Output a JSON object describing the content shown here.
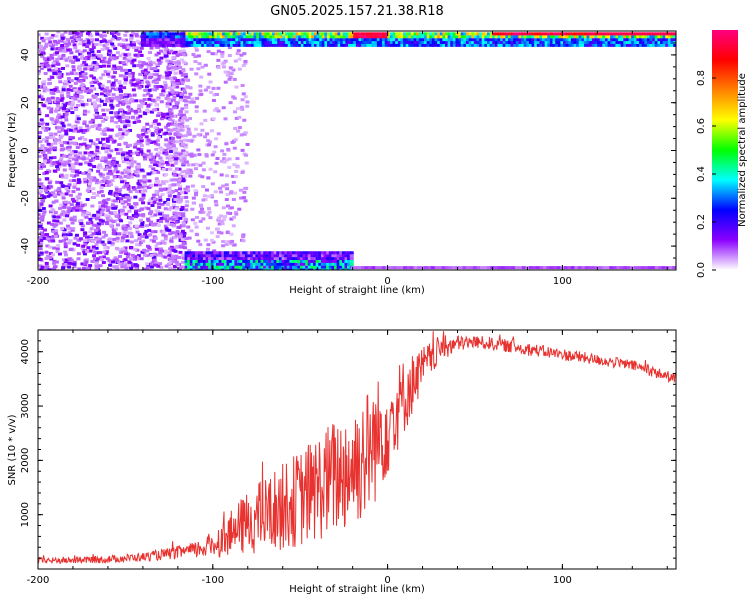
{
  "figure": {
    "title": "GN05.2025.157.21.38.R18"
  },
  "chart_data": [
    {
      "type": "heatmap",
      "title": "GN05.2025.157.21.38.R18",
      "xlabel": "Height of straight line (km)",
      "ylabel": "Frequency (Hz)",
      "xlim": [
        -200,
        165
      ],
      "ylim": [
        -50,
        50
      ],
      "x_ticks": [
        -200,
        -100,
        0,
        100
      ],
      "x_tick_labels": [
        "-200",
        "-100",
        "0",
        "100"
      ],
      "y_ticks": [
        40,
        20,
        0,
        -20,
        -40
      ],
      "y_tick_labels": [
        "40",
        "20",
        "0",
        "-20",
        "-40"
      ],
      "colorbar": {
        "label": "Normalized spectral amplitude",
        "range": [
          0,
          1
        ],
        "ticks": [
          0.0,
          0.2,
          0.4,
          0.6,
          0.8
        ],
        "tick_labels": [
          "0.0",
          "0.2",
          "0.4",
          "0.6",
          "0.8"
        ],
        "colors": [
          "#ffffff",
          "#8b00ff",
          "#0000ff",
          "#00ffff",
          "#00ff00",
          "#ffff00",
          "#ff8000",
          "#ff0000",
          "#ff0080"
        ]
      },
      "features": [
        {
          "description": "scattered noise",
          "x_range": [
            -200,
            -115
          ],
          "y_range": [
            -50,
            50
          ],
          "level": 0.15
        },
        {
          "description": "upper band",
          "x_range": [
            -140,
            165
          ],
          "y_range": [
            44,
            50
          ],
          "level": 0.6
        },
        {
          "description": "lower band",
          "x_range": [
            -115,
            -20
          ],
          "y_range": [
            -50,
            -42
          ],
          "level": 0.4
        }
      ]
    },
    {
      "type": "line",
      "xlabel": "Height of straight line (km)",
      "ylabel": "SNR (10 * v/v)",
      "xlim": [
        -200,
        165
      ],
      "ylim": [
        0,
        4400
      ],
      "x_ticks": [
        -200,
        -100,
        0,
        100
      ],
      "x_tick_labels": [
        "-200",
        "-100",
        "0",
        "100"
      ],
      "y_ticks": [
        1000,
        2000,
        3000,
        4000
      ],
      "y_tick_labels": [
        "1000",
        "2000",
        "3000",
        "4000"
      ],
      "color": "#e8322f",
      "series": [
        {
          "x": [
            -200,
            -180,
            -160,
            -140,
            -120,
            -110,
            -100,
            -90,
            -80,
            -70,
            -60,
            -50,
            -40,
            -30,
            -20,
            -10,
            0,
            10,
            20,
            30,
            40,
            50,
            60,
            70,
            80,
            90,
            100,
            110,
            120,
            130,
            140,
            150,
            165
          ],
          "y": [
            150,
            160,
            180,
            220,
            300,
            350,
            450,
            650,
            850,
            1000,
            1150,
            1300,
            1500,
            1700,
            1900,
            2200,
            2700,
            3200,
            3700,
            4050,
            4150,
            4180,
            4150,
            4100,
            4050,
            4000,
            3950,
            3900,
            3850,
            3800,
            3750,
            3650,
            3500
          ],
          "noise": [
            60,
            60,
            70,
            80,
            120,
            150,
            250,
            400,
            600,
            700,
            800,
            900,
            1000,
            1100,
            1200,
            1200,
            1000,
            700,
            400,
            250,
            150,
            120,
            120,
            120,
            120,
            110,
            110,
            110,
            100,
            100,
            100,
            100,
            100
          ]
        }
      ]
    }
  ]
}
